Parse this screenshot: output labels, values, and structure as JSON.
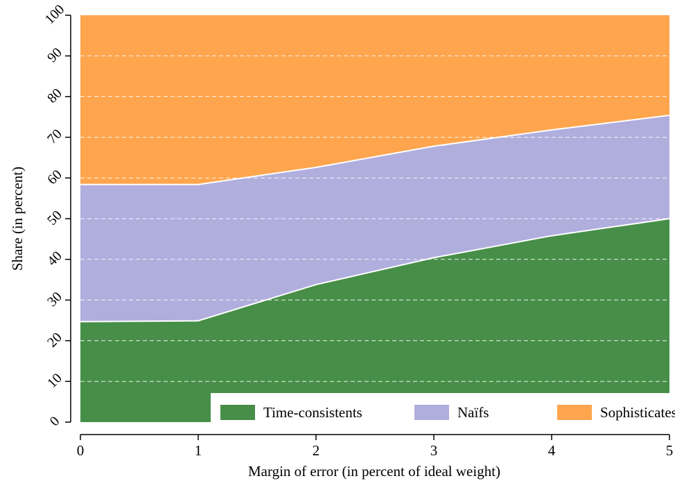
{
  "chart_data": {
    "type": "area",
    "stacked": true,
    "title": "",
    "xlabel": "Margin of error (in percent of ideal weight)",
    "ylabel": "Share (in percent)",
    "xlim": [
      0,
      5
    ],
    "ylim": [
      0,
      100
    ],
    "xticks": [
      "0",
      "1",
      "2",
      "3",
      "4",
      "5"
    ],
    "yticks": [
      "0",
      "10",
      "20",
      "30",
      "40",
      "50",
      "60",
      "70",
      "80",
      "90",
      "100"
    ],
    "grid": "horizontal dashed",
    "legend": "bottom-right",
    "x": [
      0,
      1,
      2,
      3,
      4,
      5
    ],
    "series": [
      {
        "name": "Time-consistents",
        "color": "#478e48",
        "values": [
          24.7,
          24.9,
          33.8,
          40.4,
          45.8,
          50.0
        ]
      },
      {
        "name": "Naïfs",
        "color": "#b0aedd",
        "values": [
          33.7,
          33.5,
          28.8,
          27.4,
          26.0,
          25.4
        ]
      },
      {
        "name": "Sophisticates",
        "color": "#fea54d",
        "values": [
          41.6,
          41.6,
          37.4,
          32.2,
          28.2,
          24.6
        ]
      }
    ]
  }
}
